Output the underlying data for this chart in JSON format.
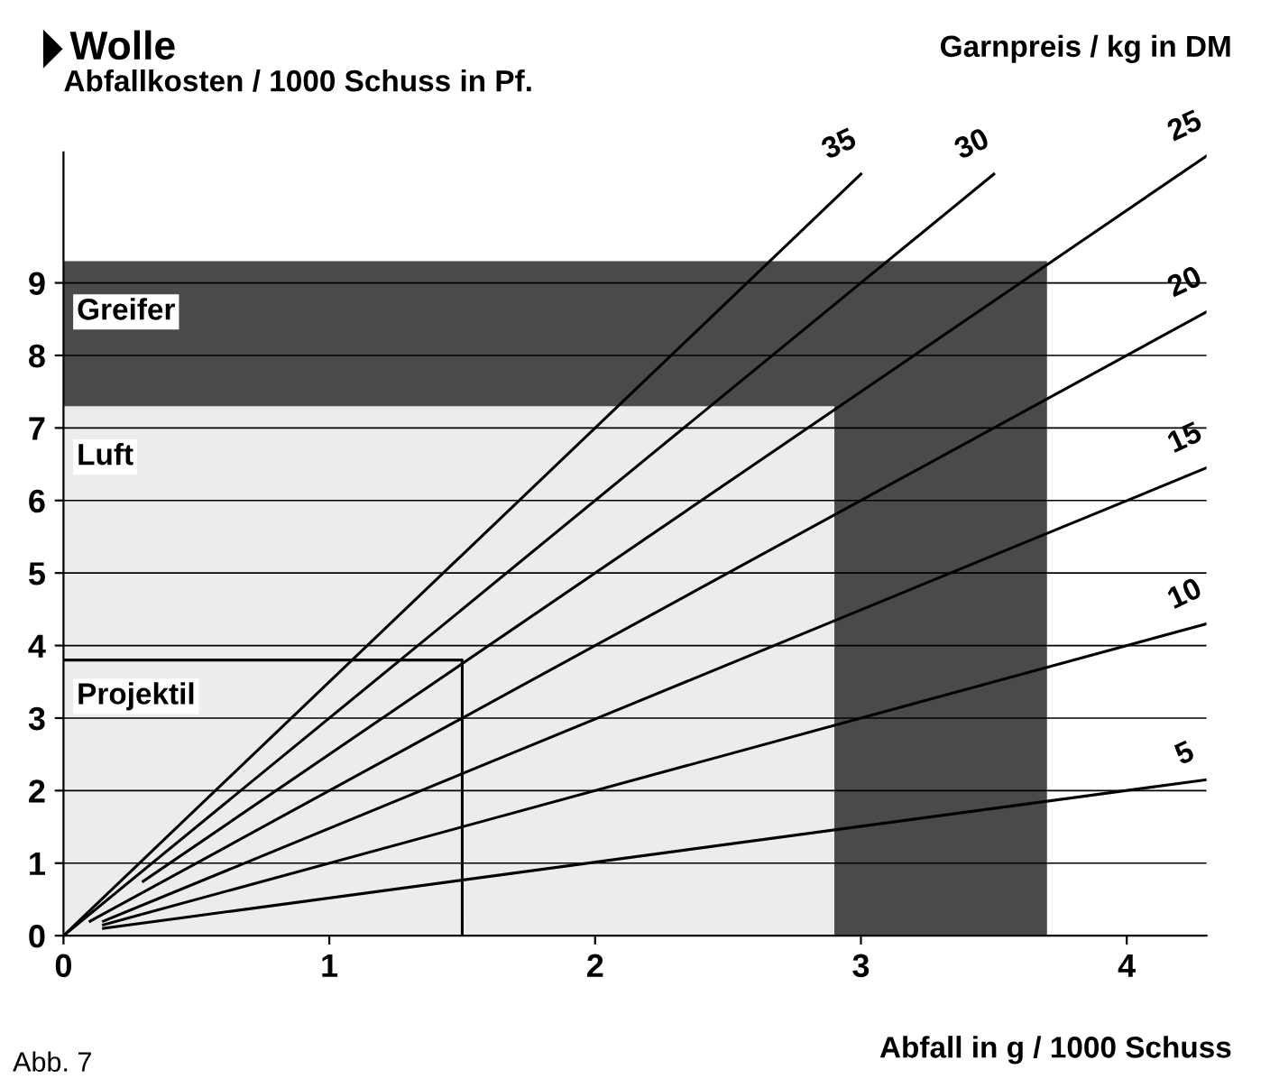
{
  "chart_data": {
    "type": "line",
    "title": "Wolle",
    "xlabel": "Abfall in g / 1000 Schuss",
    "ylabel": "Abfallkosten / 1000 Schuss in Pf.",
    "legend_title": "Garnpreis / kg in DM",
    "annotations": [
      "Abb. 7"
    ],
    "xlim": [
      0,
      4.3
    ],
    "ylim": [
      0,
      10.8
    ],
    "xticks": [
      0,
      1,
      2,
      3,
      4
    ],
    "yticks": [
      0,
      1,
      2,
      3,
      4,
      5,
      6,
      7,
      8,
      9
    ],
    "grid": "y",
    "legend": false,
    "series": [
      {
        "name": "Greifer",
        "type": "area",
        "color": "#4a4a4a",
        "x": [
          0,
          3.7
        ],
        "values": [
          9.3,
          9.3
        ]
      },
      {
        "name": "Luft",
        "type": "area",
        "color": "#ececec",
        "x": [
          0,
          2.9
        ],
        "values": [
          7.3,
          7.3
        ]
      },
      {
        "name": "Projektil",
        "type": "line",
        "color": "#000000",
        "x": [
          0,
          1.5,
          1.5
        ],
        "values": [
          3.8,
          3.8,
          0
        ]
      },
      {
        "name": "5",
        "color": "#000000",
        "x": [
          0.15,
          4.3
        ],
        "values": [
          0.1,
          2.15
        ]
      },
      {
        "name": "10",
        "color": "#000000",
        "x": [
          0.15,
          4.3
        ],
        "values": [
          0.15,
          4.3
        ]
      },
      {
        "name": "15",
        "color": "#000000",
        "x": [
          0.15,
          4.3
        ],
        "values": [
          0.2,
          6.45
        ]
      },
      {
        "name": "20",
        "color": "#000000",
        "x": [
          0.1,
          4.3
        ],
        "values": [
          0.2,
          8.6
        ]
      },
      {
        "name": "25",
        "color": "#000000",
        "x": [
          0.3,
          4.3
        ],
        "values": [
          0.75,
          10.75
        ]
      },
      {
        "name": "30",
        "color": "#000000",
        "x": [
          0,
          3.5
        ],
        "values": [
          0,
          10.5
        ]
      },
      {
        "name": "35",
        "color": "#000000",
        "x": [
          0,
          3.0
        ],
        "values": [
          0,
          10.5
        ]
      }
    ]
  }
}
